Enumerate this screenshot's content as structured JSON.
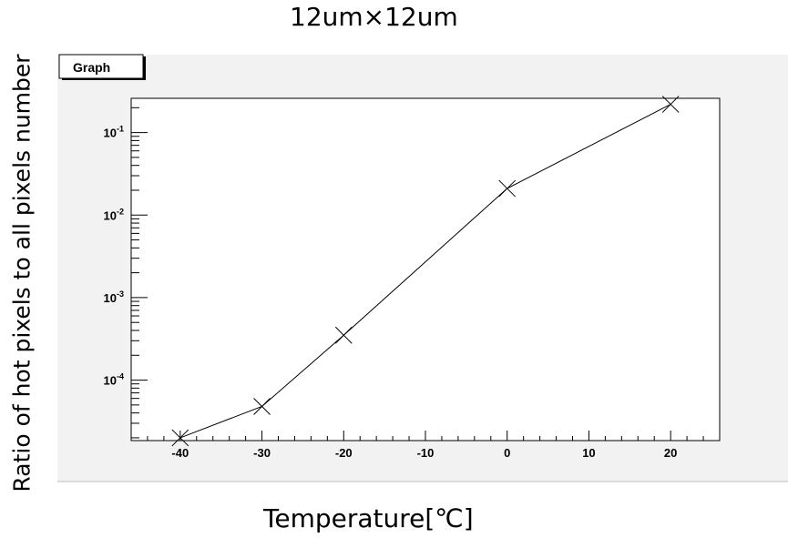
{
  "title": "12um×12um",
  "badge": "Graph",
  "chart_data": {
    "type": "line",
    "title": "12um×12um",
    "xlabel": "Temperature[℃]",
    "ylabel": "Ratio of hot pixels to all pixels number",
    "y_scale": "log",
    "x": [
      -40,
      -30,
      -20,
      0,
      20
    ],
    "y": [
      2e-05,
      4.8e-05,
      0.00035,
      0.021,
      0.22
    ],
    "marker": "x",
    "xlim": [
      -46,
      26
    ],
    "ylim": [
      1.85e-05,
      0.26
    ],
    "x_ticks": [
      -40,
      -30,
      -20,
      -10,
      0,
      10,
      20
    ],
    "x_tick_labels": [
      "-40",
      "-30",
      "-20",
      "-10",
      "0",
      "10",
      "20"
    ],
    "y_ticks": [
      0.0001,
      0.001,
      0.01,
      0.1
    ],
    "y_tick_labels": [
      {
        "base": "10",
        "exp": "-4"
      },
      {
        "base": "10",
        "exp": "-3"
      },
      {
        "base": "10",
        "exp": "-2"
      },
      {
        "base": "10",
        "exp": "-1"
      }
    ]
  }
}
